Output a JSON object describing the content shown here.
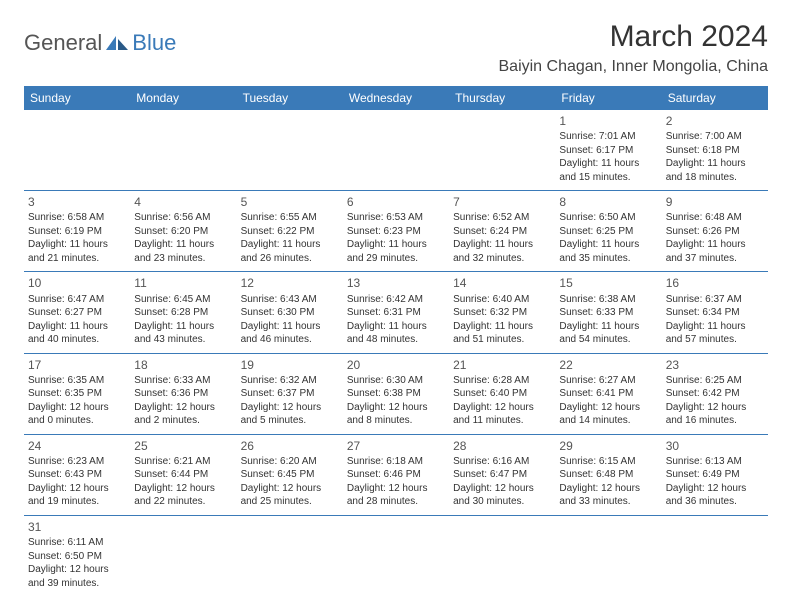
{
  "logo": {
    "general": "General",
    "blue": "Blue"
  },
  "title": "March 2024",
  "location": "Baiyin Chagan, Inner Mongolia, China",
  "colors": {
    "header_bg": "#3a7ab8",
    "header_text": "#ffffff",
    "border": "#3a7ab8",
    "text": "#333333",
    "logo_gray": "#555555",
    "logo_blue": "#3a7ab8",
    "background": "#ffffff"
  },
  "fonts": {
    "title_size": 30,
    "location_size": 16,
    "dayheader_size": 12,
    "cell_size": 10,
    "daynum_size": 12
  },
  "day_headers": [
    "Sunday",
    "Monday",
    "Tuesday",
    "Wednesday",
    "Thursday",
    "Friday",
    "Saturday"
  ],
  "weeks": [
    [
      null,
      null,
      null,
      null,
      null,
      {
        "n": "1",
        "sr": "Sunrise: 7:01 AM",
        "ss": "Sunset: 6:17 PM",
        "dl": "Daylight: 11 hours and 15 minutes."
      },
      {
        "n": "2",
        "sr": "Sunrise: 7:00 AM",
        "ss": "Sunset: 6:18 PM",
        "dl": "Daylight: 11 hours and 18 minutes."
      }
    ],
    [
      {
        "n": "3",
        "sr": "Sunrise: 6:58 AM",
        "ss": "Sunset: 6:19 PM",
        "dl": "Daylight: 11 hours and 21 minutes."
      },
      {
        "n": "4",
        "sr": "Sunrise: 6:56 AM",
        "ss": "Sunset: 6:20 PM",
        "dl": "Daylight: 11 hours and 23 minutes."
      },
      {
        "n": "5",
        "sr": "Sunrise: 6:55 AM",
        "ss": "Sunset: 6:22 PM",
        "dl": "Daylight: 11 hours and 26 minutes."
      },
      {
        "n": "6",
        "sr": "Sunrise: 6:53 AM",
        "ss": "Sunset: 6:23 PM",
        "dl": "Daylight: 11 hours and 29 minutes."
      },
      {
        "n": "7",
        "sr": "Sunrise: 6:52 AM",
        "ss": "Sunset: 6:24 PM",
        "dl": "Daylight: 11 hours and 32 minutes."
      },
      {
        "n": "8",
        "sr": "Sunrise: 6:50 AM",
        "ss": "Sunset: 6:25 PM",
        "dl": "Daylight: 11 hours and 35 minutes."
      },
      {
        "n": "9",
        "sr": "Sunrise: 6:48 AM",
        "ss": "Sunset: 6:26 PM",
        "dl": "Daylight: 11 hours and 37 minutes."
      }
    ],
    [
      {
        "n": "10",
        "sr": "Sunrise: 6:47 AM",
        "ss": "Sunset: 6:27 PM",
        "dl": "Daylight: 11 hours and 40 minutes."
      },
      {
        "n": "11",
        "sr": "Sunrise: 6:45 AM",
        "ss": "Sunset: 6:28 PM",
        "dl": "Daylight: 11 hours and 43 minutes."
      },
      {
        "n": "12",
        "sr": "Sunrise: 6:43 AM",
        "ss": "Sunset: 6:30 PM",
        "dl": "Daylight: 11 hours and 46 minutes."
      },
      {
        "n": "13",
        "sr": "Sunrise: 6:42 AM",
        "ss": "Sunset: 6:31 PM",
        "dl": "Daylight: 11 hours and 48 minutes."
      },
      {
        "n": "14",
        "sr": "Sunrise: 6:40 AM",
        "ss": "Sunset: 6:32 PM",
        "dl": "Daylight: 11 hours and 51 minutes."
      },
      {
        "n": "15",
        "sr": "Sunrise: 6:38 AM",
        "ss": "Sunset: 6:33 PM",
        "dl": "Daylight: 11 hours and 54 minutes."
      },
      {
        "n": "16",
        "sr": "Sunrise: 6:37 AM",
        "ss": "Sunset: 6:34 PM",
        "dl": "Daylight: 11 hours and 57 minutes."
      }
    ],
    [
      {
        "n": "17",
        "sr": "Sunrise: 6:35 AM",
        "ss": "Sunset: 6:35 PM",
        "dl": "Daylight: 12 hours and 0 minutes."
      },
      {
        "n": "18",
        "sr": "Sunrise: 6:33 AM",
        "ss": "Sunset: 6:36 PM",
        "dl": "Daylight: 12 hours and 2 minutes."
      },
      {
        "n": "19",
        "sr": "Sunrise: 6:32 AM",
        "ss": "Sunset: 6:37 PM",
        "dl": "Daylight: 12 hours and 5 minutes."
      },
      {
        "n": "20",
        "sr": "Sunrise: 6:30 AM",
        "ss": "Sunset: 6:38 PM",
        "dl": "Daylight: 12 hours and 8 minutes."
      },
      {
        "n": "21",
        "sr": "Sunrise: 6:28 AM",
        "ss": "Sunset: 6:40 PM",
        "dl": "Daylight: 12 hours and 11 minutes."
      },
      {
        "n": "22",
        "sr": "Sunrise: 6:27 AM",
        "ss": "Sunset: 6:41 PM",
        "dl": "Daylight: 12 hours and 14 minutes."
      },
      {
        "n": "23",
        "sr": "Sunrise: 6:25 AM",
        "ss": "Sunset: 6:42 PM",
        "dl": "Daylight: 12 hours and 16 minutes."
      }
    ],
    [
      {
        "n": "24",
        "sr": "Sunrise: 6:23 AM",
        "ss": "Sunset: 6:43 PM",
        "dl": "Daylight: 12 hours and 19 minutes."
      },
      {
        "n": "25",
        "sr": "Sunrise: 6:21 AM",
        "ss": "Sunset: 6:44 PM",
        "dl": "Daylight: 12 hours and 22 minutes."
      },
      {
        "n": "26",
        "sr": "Sunrise: 6:20 AM",
        "ss": "Sunset: 6:45 PM",
        "dl": "Daylight: 12 hours and 25 minutes."
      },
      {
        "n": "27",
        "sr": "Sunrise: 6:18 AM",
        "ss": "Sunset: 6:46 PM",
        "dl": "Daylight: 12 hours and 28 minutes."
      },
      {
        "n": "28",
        "sr": "Sunrise: 6:16 AM",
        "ss": "Sunset: 6:47 PM",
        "dl": "Daylight: 12 hours and 30 minutes."
      },
      {
        "n": "29",
        "sr": "Sunrise: 6:15 AM",
        "ss": "Sunset: 6:48 PM",
        "dl": "Daylight: 12 hours and 33 minutes."
      },
      {
        "n": "30",
        "sr": "Sunrise: 6:13 AM",
        "ss": "Sunset: 6:49 PM",
        "dl": "Daylight: 12 hours and 36 minutes."
      }
    ],
    [
      {
        "n": "31",
        "sr": "Sunrise: 6:11 AM",
        "ss": "Sunset: 6:50 PM",
        "dl": "Daylight: 12 hours and 39 minutes."
      },
      null,
      null,
      null,
      null,
      null,
      null
    ]
  ]
}
